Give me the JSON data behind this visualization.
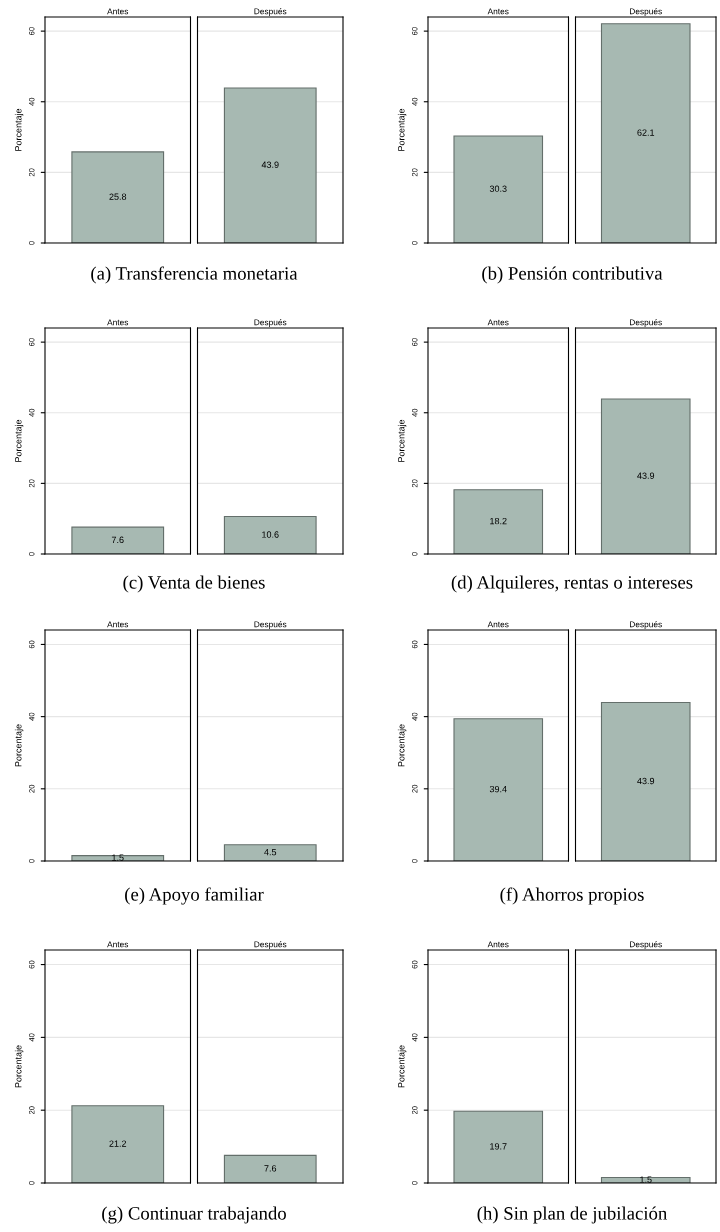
{
  "chart_data": [
    {
      "type": "bar",
      "categories": [
        "Antes",
        "Después"
      ],
      "values": [
        25.8,
        43.9
      ],
      "color": "#a7b9b2",
      "data_labels": true,
      "ylim": [
        0,
        64
      ],
      "yticks": [
        0,
        20,
        40,
        60
      ],
      "grid": "y",
      "ylabel": "Porcentaje",
      "annotations": [
        "(a) Transferencia monetaria"
      ]
    },
    {
      "type": "bar",
      "categories": [
        "Antes",
        "Después"
      ],
      "values": [
        30.3,
        62.1
      ],
      "color": "#a7b9b2",
      "data_labels": true,
      "ylim": [
        0,
        64
      ],
      "yticks": [
        0,
        20,
        40,
        60
      ],
      "grid": "y",
      "ylabel": "Porcentaje",
      "annotations": [
        "(b) Pensión contributiva"
      ]
    },
    {
      "type": "bar",
      "categories": [
        "Antes",
        "Después"
      ],
      "values": [
        7.6,
        10.6
      ],
      "color": "#a7b9b2",
      "data_labels": true,
      "ylim": [
        0,
        64
      ],
      "yticks": [
        0,
        20,
        40,
        60
      ],
      "grid": "y",
      "ylabel": "Porcentaje",
      "annotations": [
        "(c) Venta de bienes"
      ]
    },
    {
      "type": "bar",
      "categories": [
        "Antes",
        "Después"
      ],
      "values": [
        18.2,
        43.9
      ],
      "color": "#a7b9b2",
      "data_labels": true,
      "ylim": [
        0,
        64
      ],
      "yticks": [
        0,
        20,
        40,
        60
      ],
      "grid": "y",
      "ylabel": "Porcentaje",
      "annotations": [
        "(d) Alquileres, rentas o intereses"
      ]
    },
    {
      "type": "bar",
      "categories": [
        "Antes",
        "Después"
      ],
      "values": [
        1.5,
        4.5
      ],
      "color": "#a7b9b2",
      "data_labels": true,
      "ylim": [
        0,
        64
      ],
      "yticks": [
        0,
        20,
        40,
        60
      ],
      "grid": "y",
      "ylabel": "Porcentaje",
      "annotations": [
        "(e) Apoyo familiar"
      ]
    },
    {
      "type": "bar",
      "categories": [
        "Antes",
        "Después"
      ],
      "values": [
        39.4,
        43.9
      ],
      "color": "#a7b9b2",
      "data_labels": true,
      "ylim": [
        0,
        64
      ],
      "yticks": [
        0,
        20,
        40,
        60
      ],
      "grid": "y",
      "ylabel": "Porcentaje",
      "annotations": [
        "(f) Ahorros propios"
      ]
    },
    {
      "type": "bar",
      "categories": [
        "Antes",
        "Después"
      ],
      "values": [
        21.2,
        7.6
      ],
      "color": "#a7b9b2",
      "data_labels": true,
      "ylim": [
        0,
        64
      ],
      "yticks": [
        0,
        20,
        40,
        60
      ],
      "grid": "y",
      "ylabel": "Porcentaje",
      "annotations": [
        "(g) Continuar trabajando"
      ]
    },
    {
      "type": "bar",
      "categories": [
        "Antes",
        "Después"
      ],
      "values": [
        19.7,
        1.5
      ],
      "color": "#a7b9b2",
      "data_labels": true,
      "ylim": [
        0,
        64
      ],
      "yticks": [
        0,
        20,
        40,
        60
      ],
      "grid": "y",
      "ylabel": "Porcentaje",
      "annotations": [
        "(h) Sin plan de jubilación"
      ]
    }
  ]
}
